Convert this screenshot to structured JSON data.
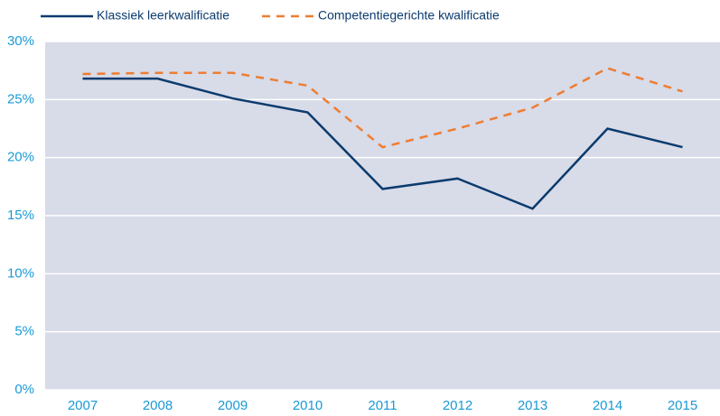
{
  "chart_data": {
    "type": "line",
    "categories": [
      "2007",
      "2008",
      "2009",
      "2010",
      "2011",
      "2012",
      "2013",
      "2014",
      "2015"
    ],
    "series": [
      {
        "name": "Klassiek leerkwalificatie",
        "color": "#0b3b6e",
        "dash": false,
        "values": [
          26.8,
          26.8,
          25.1,
          23.9,
          17.3,
          18.2,
          15.6,
          22.5,
          20.9
        ]
      },
      {
        "name": "Competentiegerichte kwalificatie",
        "color": "#ee7d31",
        "dash": true,
        "values": [
          27.2,
          27.3,
          27.3,
          26.2,
          20.9,
          22.5,
          24.3,
          27.7,
          25.7
        ]
      }
    ],
    "ylim": [
      0,
      30
    ],
    "yticks": [
      {
        "value": 0,
        "label": "0%"
      },
      {
        "value": 5,
        "label": "5%"
      },
      {
        "value": 10,
        "label": "10%"
      },
      {
        "value": 15,
        "label": "15%"
      },
      {
        "value": 20,
        "label": "20%"
      },
      {
        "value": 25,
        "label": "25%"
      },
      {
        "value": 30,
        "label": "30%"
      }
    ],
    "grid": true
  }
}
